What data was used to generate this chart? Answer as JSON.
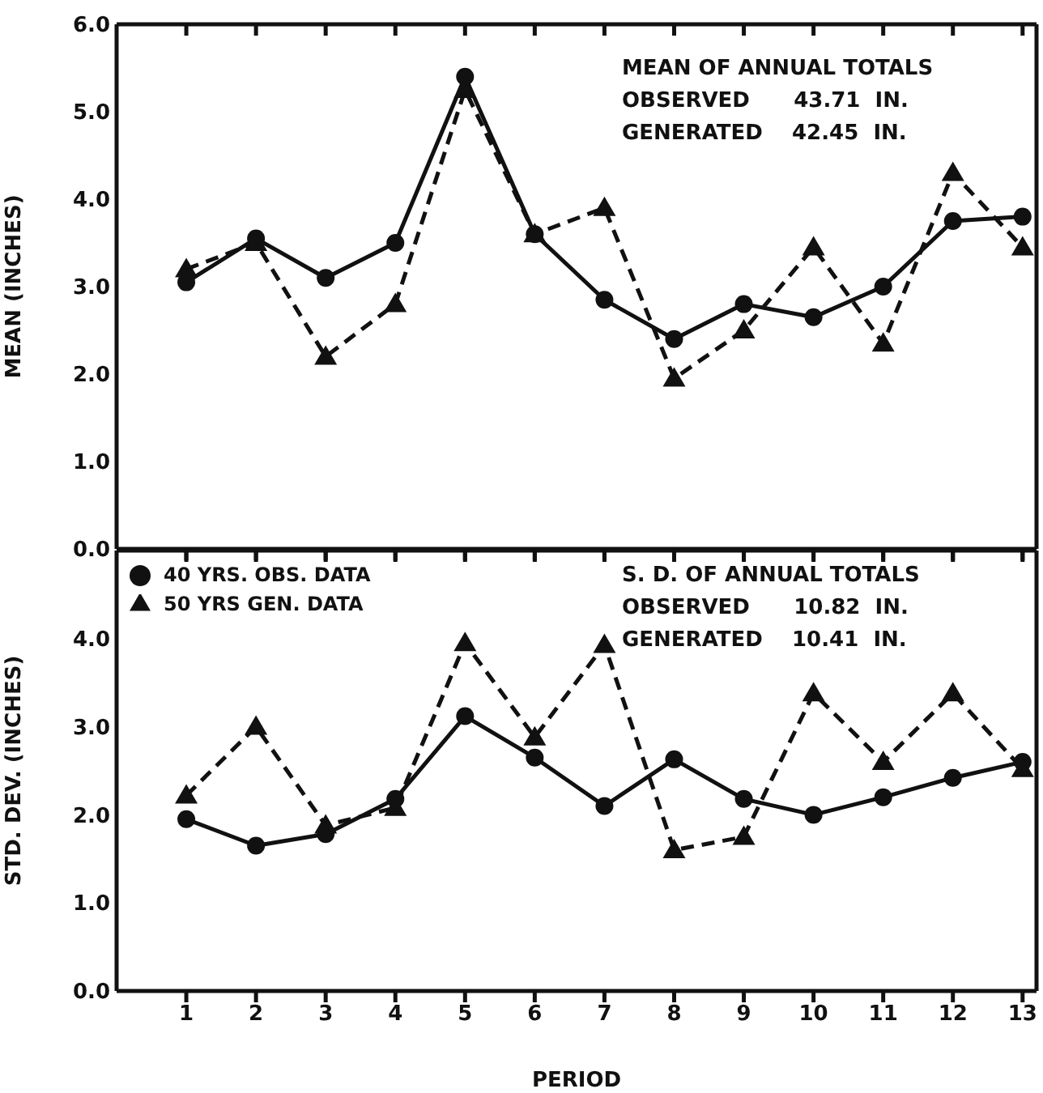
{
  "chart_data": [
    {
      "type": "line",
      "ylabel": "MEAN (INCHES)",
      "x": [
        1,
        2,
        3,
        4,
        5,
        6,
        7,
        8,
        9,
        10,
        11,
        12,
        13
      ],
      "series": [
        {
          "color": "#111111",
          "line_style": "solid",
          "marker": "circle",
          "values": [
            3.05,
            3.55,
            3.1,
            3.5,
            5.4,
            3.6,
            2.85,
            2.4,
            2.8,
            2.65,
            3.0,
            3.75,
            3.8
          ]
        },
        {
          "color": "#111111",
          "line_style": "dashed",
          "marker": "triangle",
          "values": [
            3.2,
            3.5,
            2.2,
            2.8,
            5.25,
            3.6,
            3.9,
            1.95,
            2.5,
            3.45,
            2.35,
            4.3,
            3.45
          ]
        }
      ],
      "xlim": [
        0,
        13.2
      ],
      "xticks": [
        1,
        2,
        3,
        4,
        5,
        6,
        7,
        8,
        9,
        10,
        11,
        12,
        13
      ],
      "ylim": [
        0,
        6
      ],
      "yticks": [
        {
          "value": 0,
          "label": "0.0"
        },
        {
          "value": 1,
          "label": "1.0"
        },
        {
          "value": 2,
          "label": "2.0"
        },
        {
          "value": 3,
          "label": "3.0"
        },
        {
          "value": 4,
          "label": "4.0"
        },
        {
          "value": 5,
          "label": "5.0"
        },
        {
          "value": 6,
          "label": "6.0"
        }
      ],
      "tick_labels": "y",
      "grid": false,
      "legend": false,
      "annotations": [
        "MEAN OF ANNUAL TOTALS",
        "OBSERVED      43.71  IN.",
        "GENERATED    42.45  IN."
      ]
    },
    {
      "type": "line",
      "ylabel": "STD. DEV. (INCHES)",
      "xlabel": "PERIOD",
      "x": [
        1,
        2,
        3,
        4,
        5,
        6,
        7,
        8,
        9,
        10,
        11,
        12,
        13
      ],
      "series": [
        {
          "name": "40 YRS. OBS. DATA",
          "color": "#111111",
          "line_style": "solid",
          "marker": "circle",
          "values": [
            1.95,
            1.65,
            1.78,
            2.18,
            3.12,
            2.65,
            2.1,
            2.63,
            2.18,
            2.0,
            2.2,
            2.42,
            2.6
          ]
        },
        {
          "name": "50 YRS GEN. DATA",
          "color": "#111111",
          "line_style": "dashed",
          "marker": "triangle",
          "values": [
            2.22,
            3.0,
            1.88,
            2.08,
            3.95,
            2.88,
            3.93,
            1.6,
            1.75,
            3.38,
            2.6,
            3.38,
            2.52
          ]
        }
      ],
      "xlim": [
        0,
        13.2
      ],
      "xticks": [
        1,
        2,
        3,
        4,
        5,
        6,
        7,
        8,
        9,
        10,
        11,
        12,
        13
      ],
      "ylim": [
        0,
        5
      ],
      "yticks": [
        {
          "value": 0,
          "label": "0.0"
        },
        {
          "value": 1,
          "label": "1.0"
        },
        {
          "value": 2,
          "label": "2.0"
        },
        {
          "value": 3,
          "label": "3.0"
        },
        {
          "value": 4,
          "label": "4.0"
        }
      ],
      "grid": false,
      "legend": "top left",
      "annotations": [
        "S. D. OF ANNUAL TOTALS",
        "OBSERVED      10.82  IN.",
        "GENERATED    10.41  IN."
      ]
    }
  ]
}
